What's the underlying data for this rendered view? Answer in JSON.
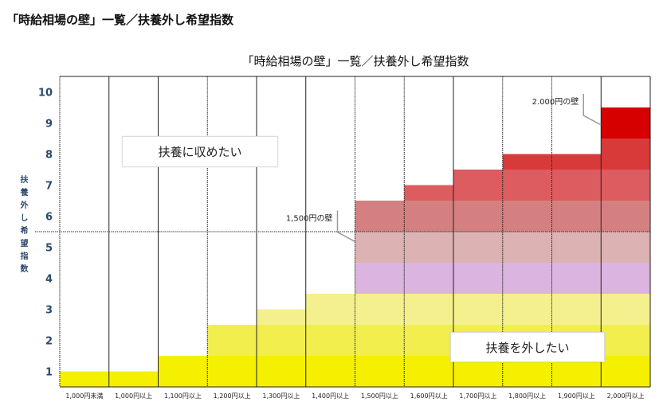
{
  "page_title": "「時給相場の壁」一覧／扶養外し希望指数",
  "chart_data": {
    "type": "bar",
    "title": "「時給相場の壁」一覧／扶養外し希望指数",
    "xlabel": "",
    "ylabel": "扶養外し希望指数",
    "ylim": [
      0.5,
      10.5
    ],
    "yticks": [
      1,
      2,
      3,
      4,
      5,
      6,
      7,
      8,
      9,
      10
    ],
    "categories": [
      "1,000円未満",
      "1,000円以上",
      "1,100円以上",
      "1,200円以上",
      "1,300円以上",
      "1,400円以上",
      "1,500円以上",
      "1,600円以上",
      "1,700円以上",
      "1,800円以上",
      "1,900円以上",
      "2,000円以上"
    ],
    "values": [
      1.0,
      1.0,
      1.5,
      2.5,
      3.0,
      3.5,
      6.5,
      7.0,
      7.5,
      8.0,
      8.0,
      9.5
    ],
    "level_colors": [
      "#f5f000",
      "#f2ee4e",
      "#f4f08e",
      "#dcb4e0",
      "#ddb2b2",
      "#d58080",
      "#dc5c60",
      "#d83a3a",
      "#d60000",
      "#d60000"
    ],
    "threshold_line": 5.5,
    "annotations": [
      {
        "text": "1,500円の壁",
        "category": "1,500円以上"
      },
      {
        "text": "2.000円の壁",
        "category": "2,000円以上"
      }
    ],
    "region_labels": {
      "upper": "扶養に収めたい",
      "lower": "扶養を外したい"
    }
  }
}
